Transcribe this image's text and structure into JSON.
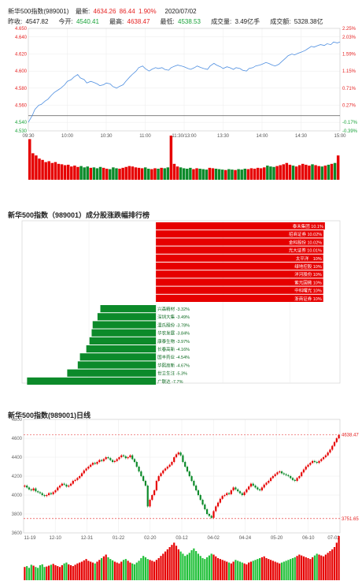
{
  "header": {
    "name": "新华500指数(989001)",
    "latest_label": "最新:",
    "latest": "4634.26",
    "change": "86.44",
    "change_pct": "1.90%",
    "date": "2020/07/02",
    "prev_close_label": "昨收:",
    "prev_close": "4547.82",
    "open_label": "今开:",
    "open": "4540.41",
    "high_label": "最高:",
    "high": "4638.47",
    "low_label": "最低:",
    "low": "4538.53",
    "volume_label": "成交量:",
    "volume": "3.49亿手",
    "amount_label": "成交额:",
    "amount": "5328.38亿"
  },
  "colors": {
    "up": "#e52222",
    "down": "#1aa33a",
    "line": "#4f8fe0",
    "bar_up": "#e60000",
    "bar_down": "#0c8a2a"
  },
  "chart_data": [
    {
      "type": "line",
      "title": "新华500指数(989001)",
      "x_ticks": [
        "09:30",
        "10:00",
        "10:30",
        "11:00",
        "11:30/13:00",
        "13:30",
        "14:00",
        "14:30",
        "15:00"
      ],
      "y_ticks": [
        "4.650",
        "4.640",
        "4.620",
        "4.600",
        "4.580",
        "4.560",
        "4.540",
        "4.530"
      ],
      "y_right_ticks": [
        "2.25%",
        "2.03%",
        "1.59%",
        "1.15%",
        "0.71%",
        "0.27%",
        "-0.17%",
        "-0.39%"
      ],
      "prev_close": 4.5478,
      "ylim": [
        4.53,
        4.65
      ],
      "x": [
        0,
        3,
        5,
        8,
        10,
        13,
        15,
        18,
        20,
        23,
        25,
        28,
        30,
        33,
        35,
        38,
        40,
        43,
        45,
        48,
        50,
        53,
        55,
        58,
        60,
        63,
        65,
        68,
        70,
        73,
        75,
        78,
        80,
        83,
        85,
        88,
        90,
        93,
        95,
        98,
        100,
        103,
        105,
        108,
        110,
        113,
        115,
        118,
        120,
        123,
        125,
        128,
        130,
        133,
        135,
        138,
        140,
        143,
        145,
        148,
        150,
        153,
        155,
        158,
        160,
        163,
        165,
        168,
        170,
        173,
        175,
        178,
        180,
        183,
        185,
        188,
        190,
        193,
        195,
        198,
        200,
        203,
        205,
        208,
        210,
        213,
        215,
        218,
        220,
        223,
        225,
        228,
        230,
        233,
        235,
        238,
        240
      ],
      "values": [
        4.54,
        4.548,
        4.555,
        4.56,
        4.561,
        4.565,
        4.567,
        4.572,
        4.575,
        4.578,
        4.58,
        4.584,
        4.588,
        4.59,
        4.593,
        4.596,
        4.592,
        4.59,
        4.586,
        4.588,
        4.587,
        4.585,
        4.583,
        4.584,
        4.586,
        4.585,
        4.582,
        4.58,
        4.582,
        4.584,
        4.588,
        4.593,
        4.596,
        4.6,
        4.604,
        4.606,
        4.603,
        4.6,
        4.602,
        4.604,
        4.603,
        4.604,
        4.602,
        4.601,
        4.604,
        4.606,
        4.607,
        4.606,
        4.605,
        4.603,
        4.602,
        4.604,
        4.606,
        4.604,
        4.603,
        4.602,
        4.606,
        4.609,
        4.607,
        4.605,
        4.603,
        4.605,
        4.604,
        4.602,
        4.604,
        4.603,
        4.601,
        4.6,
        4.603,
        4.604,
        4.606,
        4.607,
        4.608,
        4.61,
        4.609,
        4.607,
        4.606,
        4.608,
        4.611,
        4.615,
        4.618,
        4.62,
        4.619,
        4.621,
        4.622,
        4.624,
        4.626,
        4.629,
        4.628,
        4.63,
        4.631,
        4.63,
        4.632,
        4.631,
        4.634,
        4.633,
        4.634
      ],
      "volume": [
        92,
        60,
        55,
        48,
        45,
        40,
        42,
        38,
        40,
        36,
        35,
        33,
        34,
        30,
        32,
        29,
        31,
        28,
        30,
        27,
        28,
        26,
        29,
        27,
        25,
        24,
        28,
        26,
        25,
        27,
        29,
        31,
        30,
        28,
        27,
        26,
        28,
        25,
        24,
        26,
        25,
        27,
        26,
        28,
        100,
        36,
        30,
        28,
        26,
        25,
        27,
        24,
        26,
        25,
        24,
        23,
        27,
        26,
        25,
        24,
        23,
        22,
        24,
        23,
        22,
        24,
        23,
        25,
        24,
        26,
        25,
        27,
        26,
        28,
        32,
        30,
        29,
        31,
        33,
        35,
        38,
        34,
        32,
        30,
        33,
        36,
        34,
        32,
        35,
        33,
        31,
        30,
        32,
        34,
        36,
        38,
        55
      ]
    },
    {
      "type": "bar",
      "title": "新华500指数（989001）成分股涨跌幅排行榜",
      "gainers": [
        {
          "name": "泰禾集团",
          "value": 10.1,
          "label": "泰禾集团 10.1%"
        },
        {
          "name": "招商证券",
          "value": 10.02,
          "label": "招商证券 10.02%"
        },
        {
          "name": "金科股份",
          "value": 10.02,
          "label": "金科股份 10.02%"
        },
        {
          "name": "光大证券",
          "value": 10.01,
          "label": "光大证券 10.01%"
        },
        {
          "name": "太平洋",
          "value": 10,
          "label": "太平洋　10%"
        },
        {
          "name": "绿地控股",
          "value": 10,
          "label": "绿地控股 10%"
        },
        {
          "name": "洋河股份",
          "value": 10,
          "label": "洋河股份 10%"
        },
        {
          "name": "紫光国微",
          "value": 10,
          "label": "紫光国微 10%"
        },
        {
          "name": "中科曙光",
          "value": 10,
          "label": "中科曙光 10%"
        },
        {
          "name": "浙商证券",
          "value": 10,
          "label": "浙商证券 10%"
        }
      ],
      "losers": [
        {
          "name": "兴森精材",
          "value": -3.32,
          "label": "兴森精材 -3.32%"
        },
        {
          "name": "深圳大集",
          "value": -3.49,
          "label": "深圳大集 -3.49%"
        },
        {
          "name": "温氏股份",
          "value": -3.78,
          "label": "温氏股份 -3.78%"
        },
        {
          "name": "华农发展",
          "value": -3.84,
          "label": "华农发展 -3.84%"
        },
        {
          "name": "康泰生物",
          "value": -3.97,
          "label": "康泰生物 -3.97%"
        },
        {
          "name": "长春高新",
          "value": -4.16,
          "label": "长春高新 -4.16%"
        },
        {
          "name": "国丰药业",
          "value": -4.54,
          "label": "国丰药业 -4.54%"
        },
        {
          "name": "华熙高新",
          "value": -4.67,
          "label": "华熙高新 -4.67%"
        },
        {
          "name": "世立生汪",
          "value": -5.3,
          "label": "世立生汪 -5.3%"
        },
        {
          "name": "广联达",
          "value": -7.7,
          "label": "广联达 -7.7%"
        }
      ],
      "xlim": [
        -8,
        11
      ]
    },
    {
      "type": "candlestick",
      "title": "新华500指数(989001)日线",
      "x_ticks": [
        "11-19",
        "12-10",
        "12-31",
        "01-22",
        "02-20",
        "03-12",
        "04-02",
        "04-24",
        "05-20",
        "06-10",
        "07-02"
      ],
      "y_ticks": [
        "4800",
        "4600",
        "4400",
        "4200",
        "4000",
        "3800",
        "3600"
      ],
      "ylim": [
        3600,
        4800
      ],
      "max_label": "4638.47",
      "min_label": "3751.65",
      "close": [
        4100,
        4080,
        4060,
        4050,
        4070,
        4040,
        4030,
        4020,
        4000,
        3990,
        4000,
        4020,
        4010,
        4030,
        4050,
        4080,
        4100,
        4120,
        4110,
        4090,
        4100,
        4120,
        4150,
        4160,
        4180,
        4200,
        4230,
        4260,
        4280,
        4300,
        4320,
        4340,
        4330,
        4350,
        4370,
        4360,
        4380,
        4400,
        4390,
        4370,
        4350,
        4360,
        4380,
        4400,
        4420,
        4410,
        4390,
        4400,
        4420,
        4380,
        4350,
        4300,
        4250,
        4200,
        4150,
        4100,
        3880,
        3950,
        4000,
        4050,
        4150,
        4200,
        4230,
        4260,
        4280,
        4300,
        4320,
        4350,
        4400,
        4430,
        4450,
        4420,
        4350,
        4300,
        4250,
        4200,
        4150,
        4100,
        4050,
        4000,
        3950,
        3900,
        3850,
        3800,
        3780,
        3760,
        3830,
        3880,
        3920,
        3960,
        3990,
        4000,
        4020,
        4010,
        4050,
        4080,
        4060,
        4040,
        4020,
        4000,
        4030,
        4060,
        4090,
        4120,
        4100,
        4080,
        4060,
        4050,
        4080,
        4110,
        4130,
        4150,
        4180,
        4200,
        4220,
        4240,
        4250,
        4230,
        4220,
        4210,
        4200,
        4180,
        4160,
        4150,
        4180,
        4200,
        4240,
        4270,
        4300,
        4320,
        4340,
        4360,
        4350,
        4340,
        4360,
        4380,
        4400,
        4420,
        4450,
        4480,
        4520,
        4560,
        4600,
        4634
      ],
      "volume": [
        30,
        32,
        28,
        35,
        33,
        30,
        28,
        34,
        36,
        30,
        31,
        33,
        35,
        37,
        34,
        32,
        30,
        34,
        38,
        40,
        36,
        34,
        32,
        35,
        38,
        40,
        42,
        45,
        48,
        44,
        42,
        40,
        38,
        42,
        46,
        50,
        54,
        58,
        52,
        48,
        45,
        42,
        40,
        38,
        42,
        46,
        48,
        44,
        40,
        38,
        36,
        40,
        44,
        50,
        55,
        52,
        48,
        46,
        44,
        42,
        46,
        50,
        55,
        60,
        65,
        70,
        75,
        80,
        85,
        78,
        70,
        65,
        60,
        55,
        58,
        62,
        68,
        72,
        66,
        60,
        55,
        50,
        48,
        52,
        56,
        60,
        58,
        54,
        50,
        48,
        46,
        44,
        42,
        40,
        38,
        42,
        46,
        44,
        42,
        40,
        38,
        36,
        40,
        42,
        44,
        46,
        48,
        50,
        52,
        54,
        50,
        48,
        46,
        44,
        42,
        40,
        38,
        40,
        42,
        44,
        46,
        48,
        50,
        52,
        55,
        58,
        56,
        54,
        52,
        50,
        48,
        52,
        56,
        60,
        58,
        56,
        54,
        58,
        62,
        66,
        70,
        75,
        85,
        100
      ]
    }
  ]
}
